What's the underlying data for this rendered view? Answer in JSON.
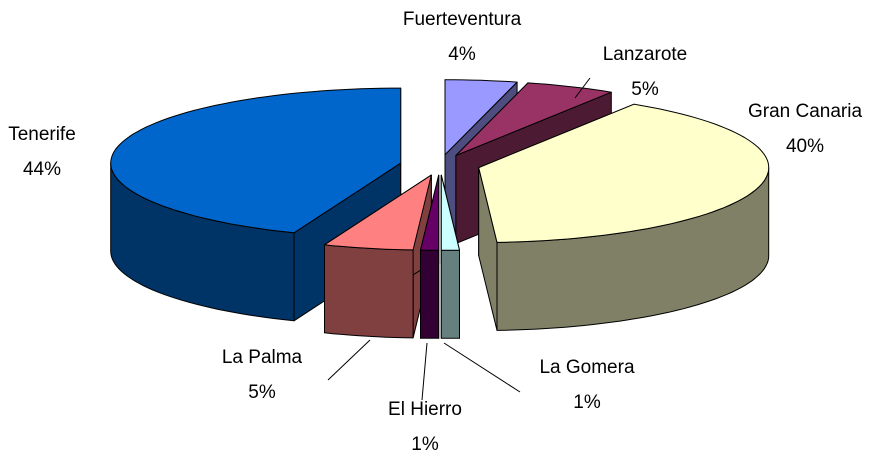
{
  "chart_data": {
    "type": "pie3d",
    "categories": [
      "Fuerteventura",
      "Lanzarote",
      "Gran Canaria",
      "La Gomera",
      "El Hierro",
      "La Palma",
      "Tenerife"
    ],
    "values": [
      4,
      5,
      40,
      1,
      1,
      5,
      44
    ],
    "value_labels": [
      "4%",
      "5%",
      "40%",
      "1%",
      "1%",
      "5%",
      "44%"
    ],
    "colors": [
      "#9999ff",
      "#993366",
      "#ffffcc",
      "#ccffff",
      "#660066",
      "#ff8080",
      "#0066cc"
    ]
  }
}
